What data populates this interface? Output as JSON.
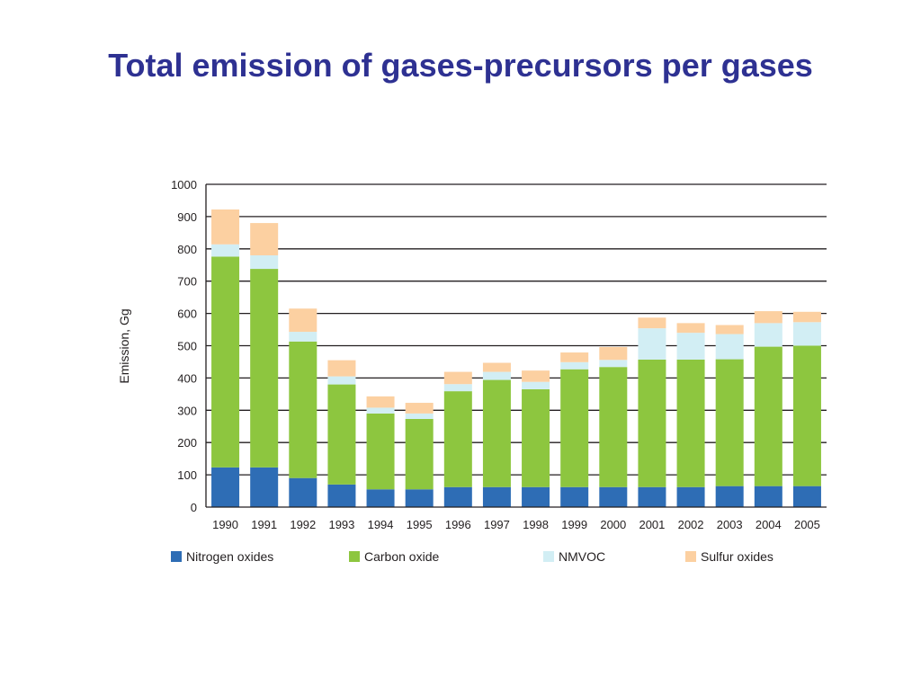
{
  "slide": {
    "title": "Total emission of gases-precursors per gases"
  },
  "chart_data": {
    "type": "bar",
    "stacked": true,
    "ylabel": "Emission, Gg",
    "xlabel": "",
    "ylim": [
      0,
      1000
    ],
    "yticks": [
      0,
      100,
      200,
      300,
      400,
      500,
      600,
      700,
      800,
      900,
      1000
    ],
    "grid": "horizontal",
    "legend_position": "bottom",
    "categories": [
      "1990",
      "1991",
      "1992",
      "1993",
      "1994",
      "1995",
      "1996",
      "1997",
      "1998",
      "1999",
      "2000",
      "2001",
      "2002",
      "2003",
      "2004",
      "2005"
    ],
    "series": [
      {
        "name": "Nitrogen oxides",
        "color": "#2e6db5",
        "values": [
          123,
          123,
          90,
          70,
          55,
          55,
          62,
          62,
          62,
          62,
          62,
          62,
          62,
          65,
          65,
          65
        ]
      },
      {
        "name": "Carbon oxide",
        "color": "#8dc63f",
        "values": [
          653,
          615,
          423,
          310,
          235,
          218,
          297,
          332,
          303,
          365,
          372,
          395,
          395,
          393,
          432,
          435
        ]
      },
      {
        "name": "NMVOC",
        "color": "#d2eef4",
        "values": [
          38,
          42,
          30,
          25,
          18,
          17,
          22,
          25,
          23,
          22,
          22,
          97,
          83,
          78,
          73,
          73
        ]
      },
      {
        "name": "Sulfur oxides",
        "color": "#fcd0a1",
        "values": [
          108,
          100,
          72,
          50,
          35,
          33,
          38,
          28,
          35,
          30,
          40,
          33,
          30,
          28,
          37,
          32
        ]
      }
    ]
  }
}
